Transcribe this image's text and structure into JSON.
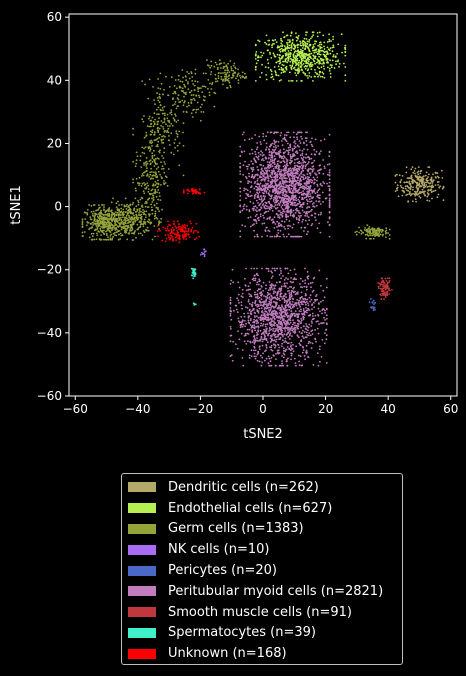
{
  "chart_data": {
    "type": "scatter",
    "xlabel": "tSNE2",
    "ylabel": "tSNE1",
    "xlim": [
      -62,
      62
    ],
    "ylim": [
      -60,
      61
    ],
    "xticks": [
      "−60",
      "−40",
      "−20",
      "0",
      "20",
      "40",
      "60"
    ],
    "yticks": [
      "60",
      "40",
      "20",
      "0",
      "−20",
      "−40",
      "−60"
    ],
    "xtick_values": [
      -60,
      -40,
      -20,
      0,
      20,
      40,
      60
    ],
    "ytick_values": [
      60,
      40,
      20,
      0,
      -20,
      -40,
      -60
    ],
    "grid": false,
    "legend_placement": "below plot",
    "series": [
      {
        "name": "Dendritic cells (n=262)",
        "color": "#b5a96a",
        "clusters": [
          {
            "cx": 50,
            "cy": 7,
            "sx": 3.5,
            "sy": 2.5,
            "w": 1
          }
        ]
      },
      {
        "name": "Endothelial cells (n=627)",
        "color": "#b5ef52",
        "clusters": [
          {
            "cx": 12,
            "cy": 47.5,
            "sx": 6.5,
            "sy": 3.5,
            "w": 1
          }
        ]
      },
      {
        "name": "Germ cells (n=1383)",
        "color": "#94a33a",
        "clusters": [
          {
            "cx": -50,
            "cy": -5,
            "sx": 3.5,
            "sy": 2.5,
            "w": 0.28
          },
          {
            "cx": -42,
            "cy": -4,
            "sx": 4,
            "sy": 3,
            "w": 0.2
          },
          {
            "cx": -36,
            "cy": 10,
            "sx": 2.5,
            "sy": 8,
            "w": 0.14
          },
          {
            "cx": -32,
            "cy": 25,
            "sx": 3,
            "sy": 7,
            "w": 0.12
          },
          {
            "cx": -24,
            "cy": 36,
            "sx": 4,
            "sy": 4,
            "w": 0.1
          },
          {
            "cx": -12,
            "cy": 42,
            "sx": 3,
            "sy": 2,
            "w": 0.08
          },
          {
            "cx": 35,
            "cy": -8,
            "sx": 2.5,
            "sy": 1,
            "w": 0.08
          }
        ]
      },
      {
        "name": "NK cells (n=10)",
        "color": "#a86cf5",
        "clusters": [
          {
            "cx": -19,
            "cy": -15,
            "sx": 0.5,
            "sy": 0.7,
            "w": 1
          }
        ]
      },
      {
        "name": "Pericytes (n=20)",
        "color": "#4a68c8",
        "clusters": [
          {
            "cx": 35,
            "cy": -31,
            "sx": 0.5,
            "sy": 1,
            "w": 1
          }
        ]
      },
      {
        "name": "Peritubular myoid cells (n=2821)",
        "color": "#c27cc0",
        "clusters": [
          {
            "cx": 7,
            "cy": 7,
            "sx": 6.5,
            "sy": 7.5,
            "w": 0.55
          },
          {
            "cx": 5,
            "cy": -35,
            "sx": 7,
            "sy": 7,
            "w": 0.45
          }
        ]
      },
      {
        "name": "Smooth muscle cells (n=91)",
        "color": "#c1373e",
        "clusters": [
          {
            "cx": 39,
            "cy": -26,
            "sx": 1,
            "sy": 1.5,
            "w": 1
          }
        ]
      },
      {
        "name": "Spermatocytes (n=39)",
        "color": "#40f0c8",
        "clusters": [
          {
            "cx": -22,
            "cy": -21,
            "sx": 0.4,
            "sy": 0.8,
            "w": 0.85
          },
          {
            "cx": -22,
            "cy": -31,
            "sx": 0.3,
            "sy": 0.3,
            "w": 0.15
          }
        ]
      },
      {
        "name": "Unknown (n=168)",
        "color": "#ff0000",
        "clusters": [
          {
            "cx": -27,
            "cy": -8,
            "sx": 3,
            "sy": 1.5,
            "w": 0.8
          },
          {
            "cx": -22,
            "cy": 5,
            "sx": 1.5,
            "sy": 0.5,
            "w": 0.2
          }
        ]
      }
    ]
  }
}
